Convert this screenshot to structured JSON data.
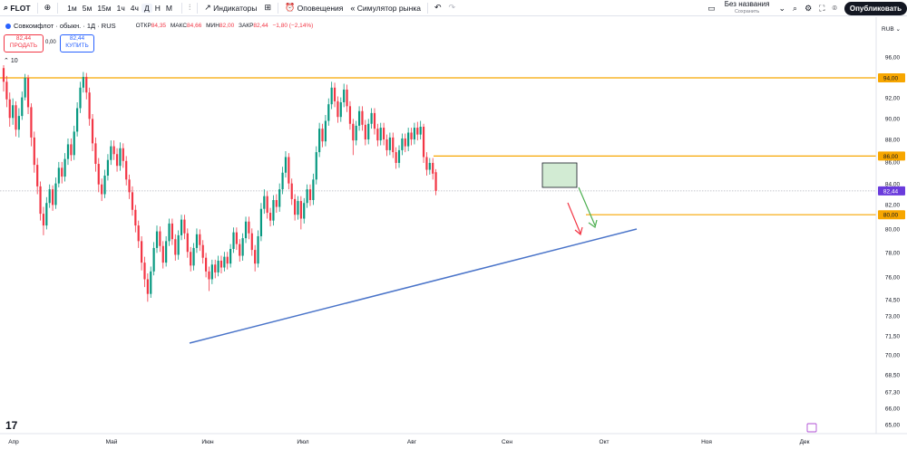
{
  "toolbar": {
    "symbol": "FLOT",
    "intervals": [
      "1м",
      "5м",
      "15м",
      "1ч",
      "4ч",
      "Д",
      "Н",
      "М"
    ],
    "active_interval": "Д",
    "indicators_label": "Индикаторы",
    "alerts_label": "Оповещения",
    "replay_label": "Симулятор рынка",
    "layout_name": "Без названия",
    "layout_status": "Сохранить",
    "publish_label": "Опубликовать"
  },
  "legend": {
    "title": "Совкомфлот · обыкн. · 1Д · RUS",
    "open_label": "ОТКР",
    "open": "84,35",
    "high_label": "МАКС",
    "high": "84,66",
    "low_label": "МИН",
    "low": "82,00",
    "close_label": "ЗАКР",
    "close": "82,44",
    "change": "−1,80 (−2,14%)"
  },
  "trade": {
    "sell_price": "82,44",
    "sell_label": "ПРОДАТЬ",
    "spread": "0,00",
    "buy_price": "82,44",
    "buy_label": "КУПИТЬ"
  },
  "indicators_count": "10",
  "colors": {
    "up": "#089981",
    "down": "#f23645",
    "level": "#f7a600",
    "trendline": "#4a74c9",
    "price_tag": "#6a3bdc",
    "level_tag": "#f7a600",
    "arrow_up": "#4caf50",
    "arrow_down": "#f23645"
  },
  "chart_data": {
    "type": "candlestick",
    "currency": "RUB",
    "y_ticks": [
      "96,00",
      "94,00",
      "92,00",
      "90,00",
      "88,00",
      "86,00",
      "84,00",
      "82,00",
      "80,00",
      "78,00",
      "76,00",
      "74,50",
      "73,00",
      "71,50",
      "70,00",
      "68,50",
      "67,30",
      "66,00",
      "65,00"
    ],
    "y_tick_values": [
      96,
      94,
      92,
      90,
      88,
      86,
      84,
      82,
      80,
      78,
      76,
      74.5,
      73,
      71.5,
      70,
      68.5,
      67.3,
      66,
      65
    ],
    "x_labels": [
      "Апр",
      "Май",
      "Июн",
      "Июл",
      "Авг",
      "Сен",
      "Окт",
      "Ноя",
      "Дек"
    ],
    "last_price": 82.44,
    "last_price_label": "82,44",
    "horizontal_levels": [
      {
        "value": 94,
        "label": "94,00"
      },
      {
        "value": 86,
        "label": "86,00"
      },
      {
        "value": 80,
        "label": "80,00"
      }
    ],
    "trendline": {
      "from": {
        "date": "2024-06-07",
        "price": 70.9
      },
      "to": {
        "date": "2024-09-30",
        "price": 80.0
      }
    },
    "candles": [
      [
        95.0,
        93.6,
        95.3,
        92.6
      ],
      [
        93.6,
        91.8,
        94.2,
        91.0
      ],
      [
        91.8,
        89.9,
        92.5,
        89.0
      ],
      [
        89.9,
        91.2,
        91.9,
        89.2
      ],
      [
        91.2,
        88.7,
        91.6,
        88.0
      ],
      [
        88.7,
        90.1,
        90.9,
        87.9
      ],
      [
        90.1,
        92.0,
        92.6,
        89.7
      ],
      [
        92.0,
        94.0,
        94.4,
        91.7
      ],
      [
        94.0,
        91.0,
        94.3,
        90.3
      ],
      [
        91.0,
        87.9,
        91.4,
        87.0
      ],
      [
        87.9,
        85.1,
        88.5,
        84.3
      ],
      [
        85.1,
        82.9,
        85.8,
        82.1
      ],
      [
        82.9,
        80.1,
        83.4,
        79.4
      ],
      [
        80.1,
        78.9,
        80.8,
        77.9
      ],
      [
        78.9,
        81.2,
        81.8,
        78.5
      ],
      [
        81.2,
        82.6,
        83.1,
        80.7
      ],
      [
        82.6,
        81.0,
        83.0,
        80.4
      ],
      [
        81.0,
        83.2,
        83.8,
        80.6
      ],
      [
        83.2,
        84.8,
        85.4,
        82.8
      ],
      [
        84.8,
        83.9,
        85.4,
        83.2
      ],
      [
        83.9,
        85.7,
        86.3,
        83.4
      ],
      [
        85.7,
        87.2,
        87.8,
        85.1
      ],
      [
        87.2,
        86.1,
        87.8,
        85.5
      ],
      [
        86.1,
        88.5,
        89.1,
        85.6
      ],
      [
        88.5,
        90.9,
        91.5,
        88.0
      ],
      [
        90.9,
        93.0,
        93.6,
        90.4
      ],
      [
        93.0,
        94.1,
        94.6,
        92.5
      ],
      [
        94.1,
        92.5,
        94.5,
        91.8
      ],
      [
        92.5,
        89.8,
        93.0,
        89.1
      ],
      [
        89.8,
        87.3,
        90.3,
        86.5
      ],
      [
        87.3,
        85.2,
        87.9,
        84.4
      ],
      [
        85.2,
        83.1,
        85.8,
        82.3
      ],
      [
        83.1,
        82.1,
        83.7,
        81.4
      ],
      [
        82.1,
        84.0,
        84.6,
        81.7
      ],
      [
        84.0,
        85.6,
        86.2,
        83.5
      ],
      [
        85.6,
        87.0,
        87.6,
        85.1
      ],
      [
        87.0,
        86.2,
        87.6,
        85.6
      ],
      [
        86.2,
        85.0,
        86.8,
        84.4
      ],
      [
        85.0,
        86.8,
        87.4,
        84.5
      ],
      [
        86.8,
        85.5,
        87.3,
        84.8
      ],
      [
        85.5,
        83.6,
        86.0,
        83.0
      ],
      [
        83.6,
        82.3,
        84.1,
        81.6
      ],
      [
        82.3,
        80.5,
        82.9,
        79.9
      ],
      [
        80.5,
        78.9,
        81.0,
        78.2
      ],
      [
        78.9,
        77.3,
        79.4,
        76.6
      ],
      [
        77.3,
        75.1,
        77.8,
        74.3
      ],
      [
        75.1,
        73.4,
        75.7,
        72.6
      ],
      [
        73.4,
        71.9,
        74.0,
        71.1
      ],
      [
        71.9,
        74.2,
        74.7,
        71.5
      ],
      [
        74.2,
        76.6,
        77.2,
        73.8
      ],
      [
        76.6,
        78.3,
        78.9,
        76.1
      ],
      [
        78.3,
        76.8,
        78.8,
        76.2
      ],
      [
        76.8,
        75.1,
        77.3,
        74.5
      ],
      [
        75.1,
        77.3,
        77.8,
        74.7
      ],
      [
        77.3,
        79.1,
        79.6,
        76.8
      ],
      [
        79.1,
        77.5,
        79.6,
        76.9
      ],
      [
        77.5,
        75.9,
        78.0,
        75.3
      ],
      [
        75.9,
        77.9,
        78.4,
        75.4
      ],
      [
        77.9,
        79.5,
        80.0,
        77.4
      ],
      [
        79.5,
        78.1,
        80.0,
        77.5
      ],
      [
        78.1,
        76.2,
        78.6,
        75.6
      ],
      [
        76.2,
        74.8,
        76.7,
        74.2
      ],
      [
        74.8,
        76.6,
        77.1,
        74.3
      ],
      [
        76.6,
        78.0,
        78.6,
        76.1
      ],
      [
        78.0,
        76.9,
        78.5,
        76.3
      ],
      [
        76.9,
        75.6,
        77.4,
        75.0
      ],
      [
        75.6,
        74.2,
        76.1,
        73.6
      ],
      [
        74.2,
        73.4,
        74.7,
        72.2
      ],
      [
        73.4,
        74.9,
        75.4,
        72.9
      ],
      [
        74.9,
        74.1,
        75.4,
        73.5
      ],
      [
        74.1,
        75.3,
        75.8,
        73.7
      ],
      [
        75.3,
        74.6,
        75.8,
        74.0
      ],
      [
        74.6,
        75.7,
        76.2,
        74.2
      ],
      [
        75.7,
        75.0,
        76.2,
        74.4
      ],
      [
        75.0,
        76.5,
        77.0,
        74.6
      ],
      [
        76.5,
        78.2,
        78.7,
        76.1
      ],
      [
        78.2,
        77.0,
        78.7,
        76.4
      ],
      [
        77.0,
        75.8,
        77.5,
        75.2
      ],
      [
        75.8,
        77.6,
        78.1,
        75.3
      ],
      [
        77.6,
        79.3,
        79.8,
        77.1
      ],
      [
        79.3,
        78.1,
        79.8,
        77.5
      ],
      [
        78.1,
        76.4,
        78.6,
        75.8
      ],
      [
        76.4,
        75.0,
        76.9,
        74.2
      ],
      [
        75.0,
        77.8,
        78.4,
        74.6
      ],
      [
        77.8,
        80.6,
        81.2,
        77.3
      ],
      [
        80.6,
        81.9,
        82.6,
        80.1
      ],
      [
        81.9,
        80.2,
        82.4,
        79.6
      ],
      [
        80.2,
        79.4,
        80.7,
        78.8
      ],
      [
        79.4,
        81.5,
        82.0,
        78.9
      ],
      [
        81.5,
        80.8,
        82.1,
        80.2
      ],
      [
        80.8,
        82.6,
        83.2,
        80.3
      ],
      [
        82.6,
        84.3,
        84.9,
        82.1
      ],
      [
        84.3,
        85.9,
        86.5,
        83.8
      ],
      [
        85.9,
        83.2,
        86.3,
        82.6
      ],
      [
        83.2,
        81.6,
        83.7,
        81.0
      ],
      [
        81.6,
        80.0,
        82.1,
        79.4
      ],
      [
        80.0,
        81.4,
        81.9,
        79.5
      ],
      [
        81.4,
        79.6,
        81.9,
        78.5
      ],
      [
        79.6,
        81.2,
        81.7,
        79.1
      ],
      [
        81.2,
        82.6,
        83.1,
        80.7
      ],
      [
        82.6,
        81.5,
        83.1,
        80.9
      ],
      [
        81.5,
        83.6,
        84.2,
        81.0
      ],
      [
        83.6,
        86.4,
        87.0,
        83.1
      ],
      [
        86.4,
        88.8,
        89.4,
        85.9
      ],
      [
        88.8,
        87.5,
        89.3,
        86.9
      ],
      [
        87.5,
        89.6,
        90.2,
        87.0
      ],
      [
        89.6,
        91.3,
        91.9,
        89.1
      ],
      [
        91.3,
        93.0,
        93.6,
        90.8
      ],
      [
        93.0,
        91.6,
        93.5,
        91.0
      ],
      [
        91.6,
        90.0,
        92.1,
        89.4
      ],
      [
        90.0,
        91.5,
        92.0,
        89.5
      ],
      [
        91.5,
        92.8,
        93.4,
        91.0
      ],
      [
        92.8,
        91.1,
        93.3,
        90.5
      ],
      [
        91.1,
        89.3,
        91.6,
        88.7
      ],
      [
        89.3,
        87.6,
        89.8,
        86.1
      ],
      [
        87.6,
        89.1,
        89.6,
        87.1
      ],
      [
        89.1,
        90.6,
        91.1,
        88.6
      ],
      [
        90.6,
        89.2,
        91.1,
        88.6
      ],
      [
        89.2,
        87.7,
        89.7,
        87.1
      ],
      [
        87.7,
        89.3,
        89.8,
        87.2
      ],
      [
        89.3,
        90.4,
        90.9,
        88.8
      ],
      [
        90.4,
        88.8,
        90.9,
        88.2
      ],
      [
        88.8,
        87.6,
        89.3,
        87.0
      ],
      [
        87.6,
        88.9,
        89.4,
        87.1
      ],
      [
        88.9,
        87.7,
        89.4,
        87.1
      ],
      [
        87.7,
        86.6,
        88.2,
        86.0
      ],
      [
        86.6,
        87.9,
        88.4,
        86.1
      ],
      [
        87.9,
        86.4,
        88.4,
        85.8
      ],
      [
        86.4,
        85.3,
        86.9,
        84.7
      ],
      [
        85.3,
        86.6,
        87.1,
        84.8
      ],
      [
        86.6,
        87.8,
        88.3,
        86.1
      ],
      [
        87.8,
        87.0,
        88.3,
        86.4
      ],
      [
        87.0,
        88.4,
        88.9,
        86.5
      ],
      [
        88.4,
        87.7,
        88.9,
        87.1
      ],
      [
        87.7,
        88.9,
        89.4,
        87.2
      ],
      [
        88.9,
        88.2,
        89.5,
        87.6
      ],
      [
        88.2,
        89.0,
        89.6,
        87.7
      ],
      [
        89.0,
        85.9,
        89.3,
        85.3
      ],
      [
        85.9,
        84.6,
        86.4,
        84.0
      ],
      [
        84.6,
        85.3,
        85.8,
        84.1
      ],
      [
        85.3,
        84.2,
        85.8,
        83.6
      ],
      [
        84.35,
        82.44,
        84.66,
        82.0
      ]
    ],
    "annotations": [
      {
        "type": "rectangle",
        "from": {
          "price": 86.0
        },
        "to": {
          "price": 83.7
        }
      },
      {
        "type": "arrow",
        "direction": "down",
        "target_price": 79.7
      },
      {
        "type": "arrow",
        "direction": "up",
        "target_price": 80.2
      }
    ]
  }
}
